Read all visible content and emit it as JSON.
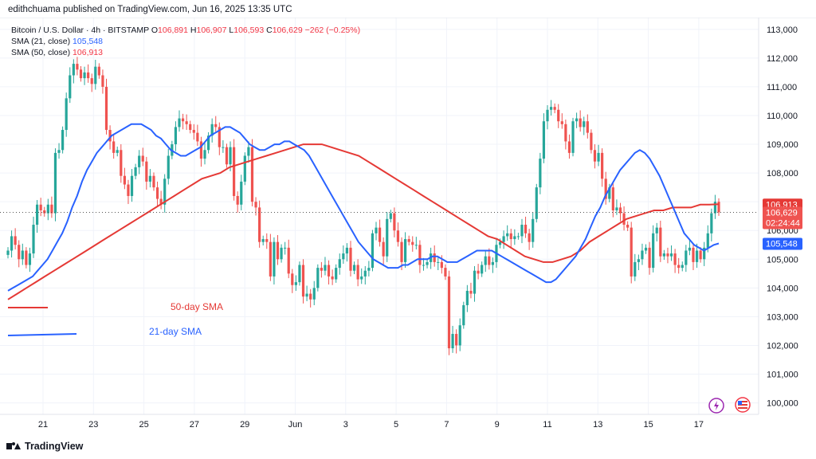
{
  "header": {
    "publisher_line": "edithchuama published on TradingView.com, Jun 16, 2025 13:35 UTC"
  },
  "legend": {
    "instrument": "Bitcoin / U.S. Dollar · 4h · BITSTAMP",
    "open_label": "O",
    "open": "106,891",
    "high_label": "H",
    "high": "106,907",
    "low_label": "L",
    "low": "106,593",
    "close_label": "C",
    "close": "106,629",
    "change": "−262 (−0.25%)",
    "sma21_label": "SMA (21, close)",
    "sma21_value": "105,548",
    "sma50_label": "SMA (50, close)",
    "sma50_value": "106,913"
  },
  "footer": {
    "brand": "TradingView"
  },
  "colors": {
    "up": "#26a69a",
    "down": "#ef5350",
    "sma21": "#2962ff",
    "sma50": "#e53935",
    "text": "#131722"
  },
  "chart_data": {
    "type": "candlestick",
    "ylim": [
      99600,
      113300
    ],
    "y_ticks": [
      "100,000",
      "101,000",
      "102,000",
      "103,000",
      "104,000",
      "105,000",
      "106,000",
      "107,000",
      "108,000",
      "109,000",
      "110,000",
      "111,000",
      "112,000",
      "113,000"
    ],
    "x_ticks": [
      "21",
      "23",
      "25",
      "27",
      "29",
      "Jun",
      "3",
      "5",
      "7",
      "9",
      "11",
      "13",
      "15",
      "17"
    ],
    "price_labels": {
      "sma50": "106,913",
      "close": "106,629",
      "countdown": "02:24:44",
      "sma21": "105,548"
    },
    "annotations": [
      "50-day SMA",
      "21-day SMA"
    ],
    "close_series": [
      105300,
      105800,
      105500,
      105000,
      105300,
      104800,
      105200,
      106200,
      106900,
      106700,
      106600,
      106900,
      106600,
      108700,
      108800,
      109500,
      110600,
      111400,
      111800,
      111600,
      111300,
      111500,
      111300,
      111100,
      111700,
      111400,
      111000,
      109500,
      109100,
      108700,
      108800,
      107900,
      107600,
      107200,
      107900,
      108200,
      108600,
      108400,
      107700,
      107900,
      107500,
      107100,
      106900,
      107800,
      108600,
      109000,
      109600,
      109900,
      109800,
      109700,
      109500,
      109400,
      109100,
      108500,
      108800,
      109300,
      109700,
      109600,
      108900,
      108900,
      108300,
      108900,
      107200,
      106900,
      107700,
      108600,
      108900,
      107000,
      106800,
      105600,
      105700,
      105600,
      104400,
      105600,
      105000,
      105400,
      105400,
      104500,
      104100,
      104200,
      104800,
      103700,
      103800,
      103600,
      104000,
      104700,
      104600,
      104800,
      104400,
      104300,
      104700,
      105000,
      105200,
      105400,
      104600,
      104800,
      104300,
      104400,
      104600,
      104700,
      105900,
      106100,
      105600,
      105100,
      106400,
      106600,
      106000,
      105600,
      104900,
      105700,
      105600,
      105500,
      105500,
      104800,
      104800,
      104900,
      105200,
      104900,
      104900,
      104700,
      104400,
      101900,
      102400,
      102000,
      102700,
      103400,
      103900,
      103800,
      104600,
      104500,
      104800,
      105100,
      104800,
      104900,
      105500,
      105600,
      105800,
      105900,
      105700,
      105800,
      105800,
      106200,
      105900,
      105600,
      106400,
      107500,
      108500,
      109800,
      110200,
      110300,
      110200,
      109800,
      109700,
      109100,
      108700,
      109800,
      109900,
      109600,
      109800,
      109400,
      108800,
      108400,
      108700,
      107800,
      107100,
      107500,
      106700,
      106800,
      106600,
      106200,
      106100,
      104400,
      104900,
      105000,
      105300,
      105400,
      104700,
      105900,
      106100,
      105100,
      105200,
      105100,
      105200,
      104800,
      104700,
      104800,
      105300,
      105400,
      104900,
      105300,
      105000,
      105400,
      105900,
      106600,
      107000,
      106629
    ],
    "sma21_series": [
      103900,
      104000,
      104100,
      104200,
      104300,
      104400,
      104600,
      104800,
      105000,
      105300,
      105600,
      105900,
      106300,
      106800,
      107200,
      107700,
      108100,
      108400,
      108700,
      108900,
      109100,
      109300,
      109400,
      109500,
      109600,
      109700,
      109700,
      109700,
      109600,
      109500,
      109300,
      109200,
      109000,
      108800,
      108700,
      108600,
      108600,
      108700,
      108800,
      108900,
      109100,
      109300,
      109400,
      109500,
      109600,
      109600,
      109500,
      109400,
      109200,
      109000,
      108900,
      108800,
      108800,
      108900,
      109000,
      109000,
      109100,
      109100,
      109000,
      108900,
      108800,
      108600,
      108300,
      108000,
      107700,
      107400,
      107100,
      106800,
      106500,
      106200,
      105900,
      105600,
      105400,
      105200,
      105000,
      104900,
      104800,
      104700,
      104700,
      104700,
      104800,
      104800,
      104900,
      105000,
      105000,
      105000,
      105100,
      105100,
      105000,
      104900,
      104900,
      104900,
      105000,
      105100,
      105200,
      105300,
      105300,
      105300,
      105300,
      105200,
      105100,
      105000,
      104900,
      104800,
      104700,
      104600,
      104500,
      104400,
      104300,
      104200,
      104200,
      104300,
      104500,
      104700,
      104900,
      105100,
      105400,
      105700,
      106100,
      106500,
      106800,
      107200,
      107500,
      107800,
      108100,
      108300,
      108500,
      108700,
      108800,
      108700,
      108500,
      108200,
      107900,
      107500,
      107100,
      106700,
      106300,
      105900,
      105700,
      105500,
      105400,
      105300,
      105400,
      105500,
      105548
    ],
    "sma50_series": [
      103600,
      103800,
      104000,
      104200,
      104400,
      104600,
      104800,
      105000,
      105200,
      105400,
      105600,
      105800,
      106000,
      106200,
      106400,
      106600,
      106800,
      107000,
      107200,
      107400,
      107600,
      107800,
      107900,
      108000,
      108200,
      108300,
      108400,
      108500,
      108600,
      108700,
      108800,
      108900,
      109000,
      109000,
      109000,
      108900,
      108800,
      108700,
      108600,
      108400,
      108200,
      108000,
      107800,
      107600,
      107400,
      107200,
      107000,
      106800,
      106600,
      106400,
      106200,
      106000,
      105800,
      105700,
      105500,
      105300,
      105100,
      105000,
      104900,
      104900,
      105000,
      105100,
      105300,
      105600,
      105800,
      106000,
      106200,
      106400,
      106500,
      106600,
      106700,
      106700,
      106800,
      106800,
      106800,
      106900,
      106900,
      106913
    ]
  }
}
